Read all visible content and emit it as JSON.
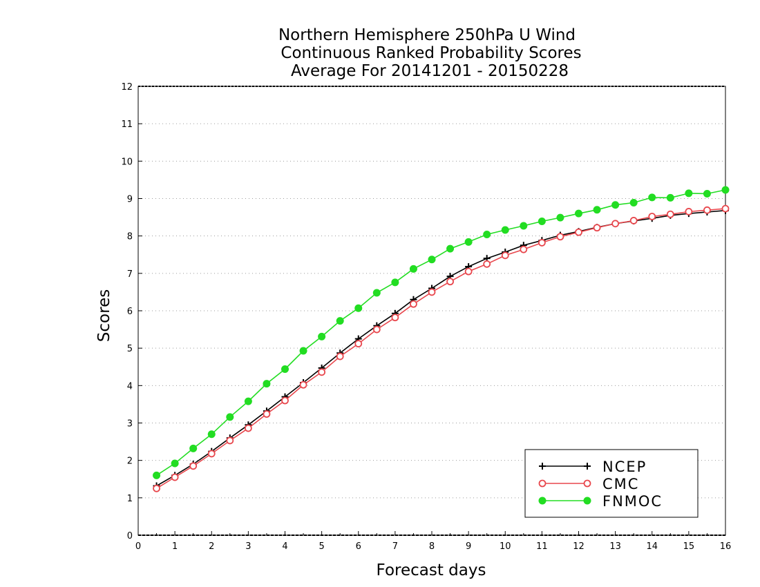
{
  "chart_data": {
    "type": "line",
    "title": [
      "Northern Hemisphere 250hPa U Wind",
      "Continuous Ranked Probability Scores",
      "Average For 20141201 - 20150228"
    ],
    "xlabel": "Forecast days",
    "ylabel": "Scores",
    "xlim": [
      0,
      16
    ],
    "ylim": [
      0,
      12
    ],
    "xticks": [
      "0",
      "1",
      "2",
      "3",
      "4",
      "5",
      "6",
      "7",
      "8",
      "9",
      "10",
      "11",
      "12",
      "13",
      "14",
      "15",
      "16"
    ],
    "yticks": [
      "0",
      "1",
      "2",
      "3",
      "4",
      "5",
      "6",
      "7",
      "8",
      "9",
      "10",
      "11",
      "12"
    ],
    "grid": "horizontal dotted",
    "legend_position": "bottom-right",
    "x": [
      0.5,
      1,
      1.5,
      2,
      2.5,
      3,
      3.5,
      4,
      4.5,
      5,
      5.5,
      6,
      6.5,
      7,
      7.5,
      8,
      8.5,
      9,
      9.5,
      10,
      10.5,
      11,
      11.5,
      12,
      12.5,
      13,
      13.5,
      14,
      14.5,
      15,
      15.5,
      16
    ],
    "series": [
      {
        "name": "NCEP",
        "color": "#000000",
        "marker": "plus",
        "values": [
          1.32,
          1.6,
          1.9,
          2.24,
          2.6,
          2.95,
          3.32,
          3.7,
          4.08,
          4.47,
          4.87,
          5.25,
          5.6,
          5.93,
          6.3,
          6.6,
          6.92,
          7.18,
          7.4,
          7.57,
          7.75,
          7.88,
          8.02,
          8.12,
          8.23,
          8.33,
          8.4,
          8.47,
          8.55,
          8.6,
          8.64,
          8.68
        ]
      },
      {
        "name": "CMC",
        "color": "#e8474d",
        "marker": "open-circle",
        "values": [
          1.25,
          1.55,
          1.85,
          2.18,
          2.53,
          2.86,
          3.24,
          3.6,
          4.02,
          4.36,
          4.78,
          5.12,
          5.5,
          5.82,
          6.18,
          6.5,
          6.78,
          7.05,
          7.25,
          7.48,
          7.64,
          7.82,
          7.98,
          8.1,
          8.22,
          8.33,
          8.41,
          8.52,
          8.58,
          8.65,
          8.69,
          8.73
        ]
      },
      {
        "name": "FNMOC",
        "color": "#22dd22",
        "marker": "filled-circle",
        "values": [
          1.6,
          1.92,
          2.32,
          2.7,
          3.16,
          3.58,
          4.05,
          4.44,
          4.93,
          5.31,
          5.73,
          6.07,
          6.48,
          6.76,
          7.12,
          7.37,
          7.66,
          7.84,
          8.04,
          8.16,
          8.27,
          8.39,
          8.49,
          8.6,
          8.7,
          8.83,
          8.89,
          9.03,
          9.02,
          9.14,
          9.13,
          9.23
        ]
      }
    ]
  }
}
